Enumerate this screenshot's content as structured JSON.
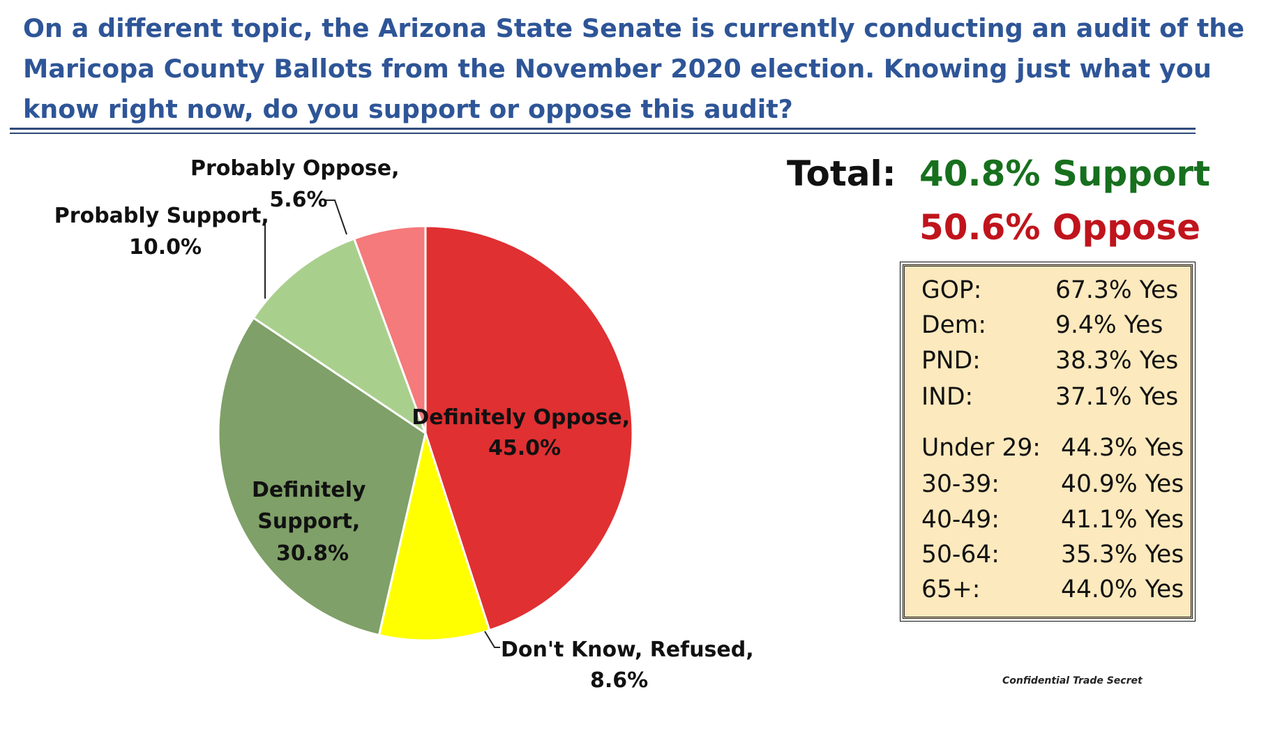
{
  "title_lines": [
    "On a different topic, the Arizona State Senate is currently conducting an audit of the",
    "Maricopa County Ballots from the November 2020 election. Knowing just what you",
    "know right now, do you support or oppose this audit?"
  ],
  "chart_data": {
    "type": "pie",
    "start_angle_deg": 90,
    "direction": "clockwise",
    "slices": [
      {
        "name": "Definitely Oppose",
        "value": 45.0,
        "label_lines": [
          "Definitely Oppose,",
          "45.0%"
        ],
        "color": "#e03032"
      },
      {
        "name": "Don't Know, Refused",
        "value": 8.6,
        "label_lines": [
          "Don't Know, Refused,",
          "8.6%"
        ],
        "color": "#ffff00"
      },
      {
        "name": "Definitely Support",
        "value": 30.8,
        "label_lines": [
          "Definitely",
          "Support,",
          "30.8%"
        ],
        "color": "#7fa068"
      },
      {
        "name": "Probably Support",
        "value": 10.0,
        "label_lines": [
          "Probably Support,",
          "10.0%"
        ],
        "color": "#a9cf8d"
      },
      {
        "name": "Probably Oppose",
        "value": 5.6,
        "label_lines": [
          "Probably Oppose,",
          "5.6%"
        ],
        "color": "#f47a7b"
      }
    ]
  },
  "totals": {
    "label": "Total:",
    "support": "40.8% Support",
    "oppose": "50.6% Oppose",
    "support_color": "#17701e",
    "oppose_color": "#c0141c"
  },
  "breakdown": {
    "party": [
      {
        "group": "GOP:",
        "value": "67.3% Yes"
      },
      {
        "group": "Dem:",
        "value": "9.4% Yes"
      },
      {
        "group": "PND:",
        "value": "38.3% Yes"
      },
      {
        "group": "IND:",
        "value": "37.1% Yes"
      }
    ],
    "age": [
      {
        "group": "Under 29:",
        "value": "44.3% Yes"
      },
      {
        "group": "30-39:",
        "value": "40.9% Yes"
      },
      {
        "group": "40-49:",
        "value": "41.1% Yes"
      },
      {
        "group": "50-64:",
        "value": "35.3% Yes"
      },
      {
        "group": "65+:",
        "value": "44.0% Yes"
      }
    ]
  },
  "footer": "Confidential Trade Secret"
}
